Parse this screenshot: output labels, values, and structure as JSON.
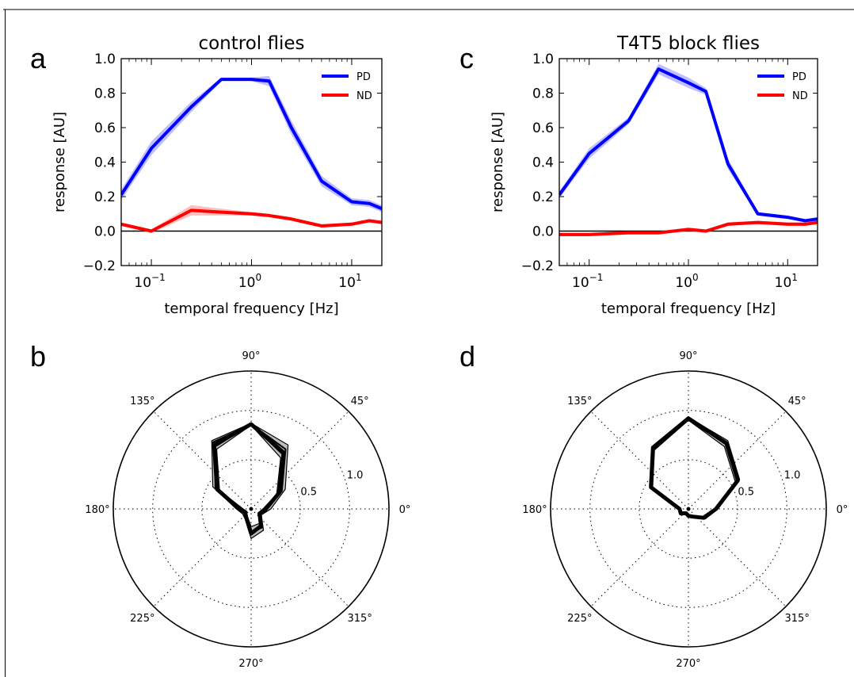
{
  "panel_letters": [
    "a",
    "b",
    "c",
    "d"
  ],
  "chart_data": [
    {
      "id": "a",
      "type": "line",
      "title": "control flies",
      "xlabel": "temporal frequency [Hz]",
      "ylabel": "response [AU]",
      "xscale": "log",
      "xlim": [
        0.05,
        20
      ],
      "ylim": [
        -0.2,
        1.0
      ],
      "yticks": [
        "−0.2",
        "0.0",
        "0.2",
        "0.4",
        "0.6",
        "0.8",
        "1.0"
      ],
      "xticks": [
        {
          "base": "10",
          "exp": "−1"
        },
        {
          "base": "10",
          "exp": "0"
        },
        {
          "base": "10",
          "exp": "1"
        }
      ],
      "x": [
        0.05,
        0.1,
        0.25,
        0.5,
        1.0,
        1.5,
        2.5,
        5.0,
        10.0,
        15.0,
        20.0
      ],
      "legend": "top-right",
      "zero_line": true,
      "series": [
        {
          "name": "PD",
          "color": "#0000ff",
          "values": [
            0.21,
            0.48,
            0.72,
            0.88,
            0.88,
            0.87,
            0.6,
            0.29,
            0.17,
            0.16,
            0.13
          ],
          "band": [
            0.03,
            0.04,
            0.03,
            0.01,
            0.01,
            0.03,
            0.04,
            0.03,
            0.02,
            0.02,
            0.02
          ]
        },
        {
          "name": "ND",
          "color": "#ff0000",
          "values": [
            0.04,
            0.0,
            0.12,
            0.11,
            0.1,
            0.09,
            0.07,
            0.03,
            0.04,
            0.06,
            0.05
          ],
          "band": [
            0.01,
            0.01,
            0.03,
            0.02,
            0.01,
            0.01,
            0.01,
            0.01,
            0.01,
            0.01,
            0.01
          ]
        }
      ]
    },
    {
      "id": "c",
      "type": "line",
      "title": "T4T5 block flies",
      "xlabel": "temporal frequency [Hz]",
      "ylabel": "response [AU]",
      "xscale": "log",
      "xlim": [
        0.05,
        20
      ],
      "ylim": [
        -0.2,
        1.0
      ],
      "yticks": [
        "−0.2",
        "0.0",
        "0.2",
        "0.4",
        "0.6",
        "0.8",
        "1.0"
      ],
      "xticks": [
        {
          "base": "10",
          "exp": "−1"
        },
        {
          "base": "10",
          "exp": "0"
        },
        {
          "base": "10",
          "exp": "1"
        }
      ],
      "x": [
        0.05,
        0.1,
        0.25,
        0.5,
        1.0,
        1.5,
        2.5,
        5.0,
        10.0,
        15.0,
        20.0
      ],
      "legend": "top-right",
      "zero_line": true,
      "series": [
        {
          "name": "PD",
          "color": "#0000ff",
          "values": [
            0.21,
            0.45,
            0.64,
            0.94,
            0.86,
            0.81,
            0.39,
            0.1,
            0.08,
            0.06,
            0.07
          ],
          "band": [
            0.02,
            0.03,
            0.02,
            0.03,
            0.03,
            0.02,
            0.03,
            0.01,
            0.01,
            0.01,
            0.01
          ]
        },
        {
          "name": "ND",
          "color": "#ff0000",
          "values": [
            -0.02,
            -0.02,
            -0.01,
            -0.01,
            0.01,
            0.0,
            0.04,
            0.05,
            0.04,
            0.04,
            0.05
          ],
          "band": [
            0.01,
            0.01,
            0.01,
            0.01,
            0.01,
            0.01,
            0.01,
            0.01,
            0.01,
            0.01,
            0.01
          ]
        }
      ]
    },
    {
      "id": "b",
      "type": "polar",
      "rmax": 1.4,
      "rticks": [
        0.5,
        1.0
      ],
      "rtick_labels": [
        "0.5",
        "1.0"
      ],
      "angle_labels": [
        "0°",
        "45°",
        "90°",
        "135°",
        "180°",
        "225°",
        "270°",
        "315°"
      ],
      "angles": [
        0,
        30,
        60,
        90,
        120,
        150,
        180,
        210,
        240,
        270,
        300,
        330
      ],
      "outer": [
        0.2,
        0.4,
        0.75,
        0.87,
        0.8,
        0.45,
        0.15,
        0.1,
        0.12,
        0.3,
        0.25,
        0.12
      ],
      "inner": [
        0.12,
        0.3,
        0.6,
        0.85,
        0.7,
        0.37,
        0.08,
        0.05,
        0.08,
        0.18,
        0.17,
        0.08
      ],
      "traces": [
        [
          0.15,
          0.33,
          0.66,
          0.86,
          0.75,
          0.4,
          0.12,
          0.07,
          0.1,
          0.25,
          0.2,
          0.1
        ],
        [
          0.16,
          0.36,
          0.7,
          0.86,
          0.73,
          0.42,
          0.1,
          0.08,
          0.1,
          0.23,
          0.22,
          0.1
        ],
        [
          0.14,
          0.32,
          0.64,
          0.86,
          0.78,
          0.39,
          0.11,
          0.06,
          0.1,
          0.26,
          0.19,
          0.09
        ]
      ]
    },
    {
      "id": "d",
      "type": "polar",
      "rmax": 1.4,
      "rticks": [
        0.5,
        1.0
      ],
      "rtick_labels": [
        "0.5",
        "1.0"
      ],
      "angle_labels": [
        "0°",
        "45°",
        "90°",
        "135°",
        "180°",
        "225°",
        "270°",
        "315°"
      ],
      "angles": [
        0,
        30,
        60,
        90,
        120,
        150,
        180,
        210,
        240,
        270,
        300,
        330
      ],
      "outer": [
        0.3,
        0.6,
        0.8,
        0.93,
        0.73,
        0.45,
        0.1,
        0.1,
        0.06,
        0.08,
        0.1,
        0.2
      ],
      "inner": [
        0.26,
        0.55,
        0.73,
        0.9,
        0.69,
        0.42,
        0.08,
        0.08,
        0.04,
        0.06,
        0.08,
        0.16
      ],
      "traces": [
        [
          0.28,
          0.58,
          0.77,
          0.92,
          0.72,
          0.44,
          0.09,
          0.09,
          0.05,
          0.07,
          0.09,
          0.18
        ],
        [
          0.27,
          0.57,
          0.76,
          0.91,
          0.7,
          0.43,
          0.09,
          0.09,
          0.05,
          0.07,
          0.09,
          0.17
        ],
        [
          0.29,
          0.59,
          0.78,
          0.92,
          0.71,
          0.44,
          0.09,
          0.09,
          0.05,
          0.07,
          0.09,
          0.19
        ]
      ]
    }
  ]
}
